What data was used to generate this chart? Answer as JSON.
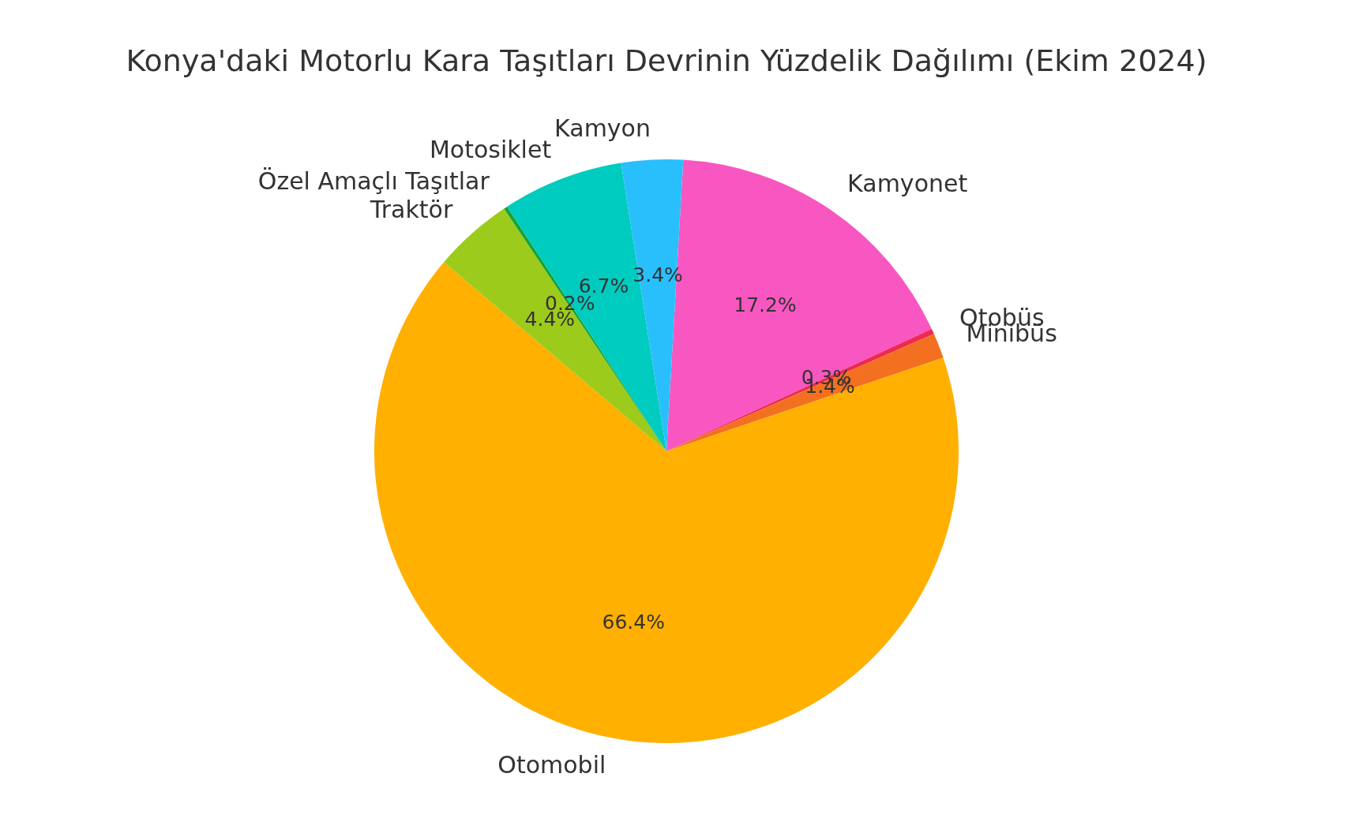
{
  "chart_data": {
    "type": "pie",
    "title": "Konya'daki Motorlu Kara Taşıtları Devrinin Yüzdelik Dağılımı (Ekim 2024)",
    "categories": [
      "Kamyonet",
      "Otobüs",
      "Minibüs",
      "Otomobil",
      "Traktör",
      "Özel Amaçlı Taşıtlar",
      "Motosiklet",
      "Kamyon"
    ],
    "values": [
      17.2,
      0.3,
      1.4,
      66.4,
      4.4,
      0.2,
      6.7,
      3.4
    ],
    "colors": [
      "#f857c1",
      "#ee2a50",
      "#f37021",
      "#ffb000",
      "#9ccb1b",
      "#13a538",
      "#00cbbf",
      "#29bffc"
    ],
    "value_labels": [
      "17.2%",
      "0.3%",
      "1.4%",
      "66.4%",
      "4.4%",
      "0.2%",
      "6.7%",
      "3.4%"
    ],
    "legend": false
  }
}
